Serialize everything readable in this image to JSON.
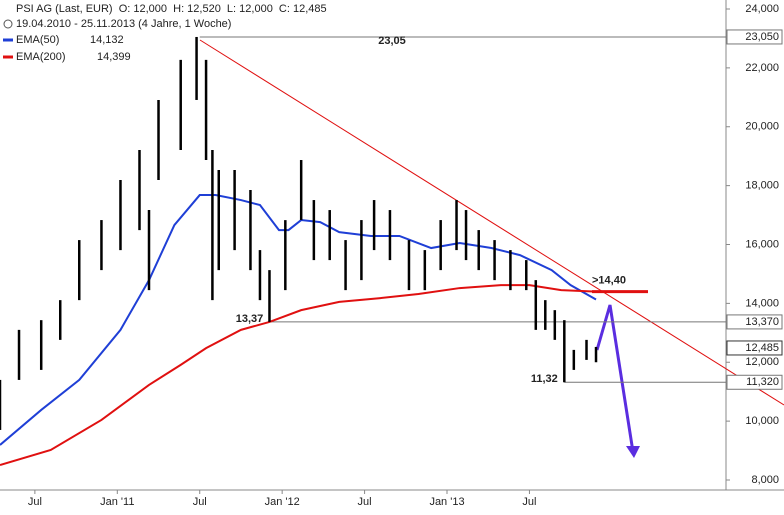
{
  "header": {
    "line1": "PSI AG (Last, EUR)  O: 12,000  H: 12,520  L: 12,000  C: 12,485",
    "line2": "19.04.2010 - 25.11.2013 (4 Jahre, 1 Woche)"
  },
  "chart_data": {
    "type": "ohlc",
    "xlim": [
      0,
      229
    ],
    "xticks": [
      {
        "value": 11,
        "label": "Jul"
      },
      {
        "value": 37,
        "label": "Jan '11"
      },
      {
        "value": 63,
        "label": "Jul"
      },
      {
        "value": 89,
        "label": "Jan '12"
      },
      {
        "value": 115,
        "label": "Jul"
      },
      {
        "value": 141,
        "label": "Jan '13"
      },
      {
        "value": 167,
        "label": "Jul"
      }
    ],
    "ylim": [
      8000,
      24000
    ],
    "yticks": [
      {
        "value": 8000,
        "label": "8,000"
      },
      {
        "value": 10000,
        "label": "10,000"
      },
      {
        "value": 12000,
        "label": "12,000"
      },
      {
        "value": 14000,
        "label": "14,000"
      },
      {
        "value": 16000,
        "label": "16,000"
      },
      {
        "value": 18000,
        "label": "18,000"
      },
      {
        "value": 20000,
        "label": "20,000"
      },
      {
        "value": 22000,
        "label": "22,000"
      },
      {
        "value": 24000,
        "label": "24,000"
      }
    ],
    "price": {
      "color": "#000000",
      "x": [
        0,
        6,
        13,
        19,
        25,
        32,
        38,
        44,
        47,
        50,
        57,
        62,
        65,
        67,
        69,
        74,
        79,
        82,
        85,
        90,
        95,
        99,
        104,
        109,
        114,
        118,
        123,
        129,
        134,
        139,
        144,
        147,
        151,
        156,
        161,
        166,
        169,
        172,
        175,
        178,
        181,
        185,
        188
      ],
      "high": [
        11400,
        13100,
        13430,
        14110,
        16150,
        16830,
        18190,
        19210,
        17170,
        20910,
        22270,
        23050,
        22270,
        19210,
        18530,
        18530,
        17850,
        15810,
        15130,
        16830,
        18870,
        17510,
        17170,
        16150,
        16830,
        17510,
        17170,
        16150,
        15810,
        16830,
        17510,
        17170,
        16490,
        16150,
        15810,
        15470,
        14790,
        14110,
        13770,
        13430,
        12420,
        12760,
        12520
      ],
      "low": [
        9700,
        11400,
        11740,
        12760,
        14110,
        15130,
        15810,
        16490,
        14450,
        18190,
        19210,
        20910,
        18870,
        14110,
        15130,
        15810,
        15130,
        14110,
        13370,
        14450,
        16830,
        15470,
        15470,
        14450,
        14790,
        15810,
        15470,
        14450,
        14450,
        15130,
        15810,
        15470,
        15130,
        14790,
        14450,
        14450,
        13100,
        13100,
        12760,
        11320,
        11740,
        12080,
        12000
      ]
    },
    "series": [
      {
        "name": "EMA(50)",
        "legend_value": "14,132",
        "color": "#1f3fd6",
        "x": [
          0,
          13,
          25,
          38,
          47,
          55,
          63,
          68,
          76,
          82,
          88,
          91,
          95,
          101,
          107,
          117,
          126,
          136,
          145,
          155,
          164,
          174,
          180,
          188
        ],
        "values": [
          9190,
          10380,
          11400,
          13100,
          14790,
          16660,
          17680,
          17680,
          17510,
          17340,
          16490,
          16490,
          16830,
          16760,
          16420,
          16290,
          16290,
          15880,
          16050,
          15880,
          15640,
          15130,
          14620,
          14132
        ]
      },
      {
        "name": "EMA(200)",
        "legend_value": "14,399",
        "color": "#e01010",
        "x": [
          0,
          16,
          32,
          47,
          57,
          65,
          76,
          85,
          95,
          107,
          120,
          132,
          145,
          158,
          167,
          177,
          188
        ],
        "values": [
          8510,
          9020,
          10040,
          11230,
          11910,
          12480,
          13100,
          13370,
          13770,
          14050,
          14180,
          14320,
          14520,
          14620,
          14620,
          14450,
          14399
        ]
      }
    ],
    "levels": [
      {
        "value": 23050,
        "label": "23,050",
        "note": "23,05",
        "from": 63
      },
      {
        "value": 13370,
        "label": "13,370",
        "note": "13,37",
        "from": 85
      },
      {
        "value": 11320,
        "label": "11,320",
        "note": "11,32",
        "from": 178
      }
    ],
    "last": {
      "value": 12485,
      "label": "12,485"
    },
    "annotation": {
      "text": ">14,40",
      "value": 14400,
      "color": "#e01010"
    }
  }
}
